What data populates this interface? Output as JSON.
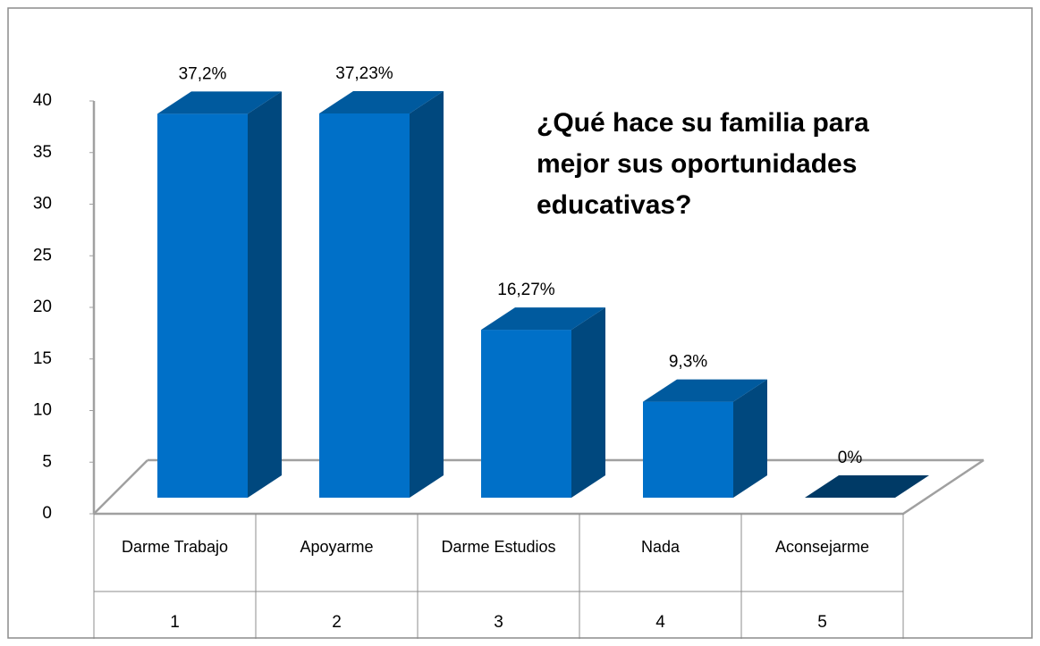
{
  "chart_data": {
    "type": "bar3d",
    "title": "¿Qué hace su familia para mejor sus oportunidades educativas?",
    "categories": [
      "Darme Trabajo",
      "Apoyarme",
      "Darme Estudios",
      "Nada",
      "Aconsejarme"
    ],
    "category_numbers": [
      1,
      2,
      3,
      4,
      5
    ],
    "values": [
      37.2,
      37.23,
      16.27,
      9.3,
      0
    ],
    "value_labels": [
      "37,2%",
      "37,23%",
      "16,27%",
      "9,3%",
      "0%"
    ],
    "color": "#0070c8",
    "ylim": [
      0,
      40
    ],
    "yticks": [
      0,
      5,
      10,
      15,
      20,
      25,
      30,
      35,
      40
    ]
  }
}
